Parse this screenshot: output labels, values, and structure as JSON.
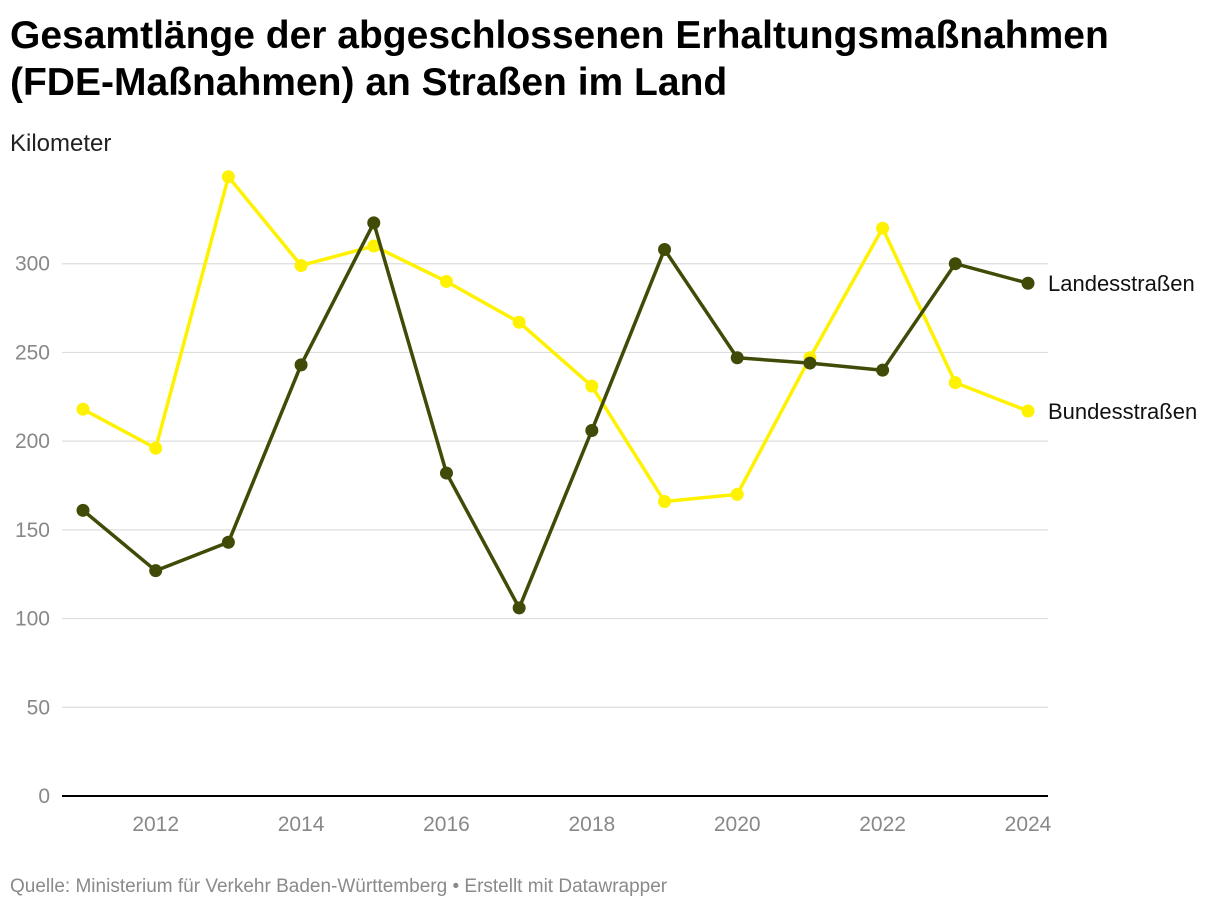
{
  "title": "Gesamtlänge der abgeschlossenen Erhaltungsmaßnahmen (FDE-Maßnahmen) an Straßen im Land",
  "subtitle": "Kilometer",
  "footer": {
    "source": "Quelle: Ministerium für Verkehr Baden-Württemberg",
    "separator": "•",
    "credit": "Erstellt mit Datawrapper"
  },
  "colors": {
    "landesstrassen": "#414a06",
    "bundesstrassen": "#fff200",
    "grid": "#dddddd",
    "axis": "#000000",
    "tick_label": "#888888"
  },
  "chart_data": {
    "type": "line",
    "title": "Gesamtlänge der abgeschlossenen Erhaltungsmaßnahmen (FDE-Maßnahmen) an Straßen im Land",
    "ylabel": "Kilometer",
    "xlabel": "",
    "x": [
      2011,
      2012,
      2013,
      2014,
      2015,
      2016,
      2017,
      2018,
      2019,
      2020,
      2021,
      2022,
      2023,
      2024
    ],
    "xlim": [
      2011,
      2024
    ],
    "xticks": [
      "2012",
      "2014",
      "2016",
      "2018",
      "2020",
      "2022",
      "2024"
    ],
    "ylim": [
      0,
      350
    ],
    "yticks": [
      "0",
      "50",
      "100",
      "150",
      "200",
      "250",
      "300"
    ],
    "grid": true,
    "legend": "direct labels at line ends",
    "series": [
      {
        "name": "Landesstraßen",
        "color": "#414a06",
        "values": [
          161,
          127,
          143,
          243,
          323,
          182,
          106,
          206,
          308,
          247,
          244,
          240,
          300,
          289
        ]
      },
      {
        "name": "Bundesstraßen",
        "color": "#fff200",
        "values": [
          218,
          196,
          349,
          299,
          310,
          290,
          267,
          231,
          166,
          170,
          247,
          320,
          233,
          217
        ]
      }
    ]
  }
}
